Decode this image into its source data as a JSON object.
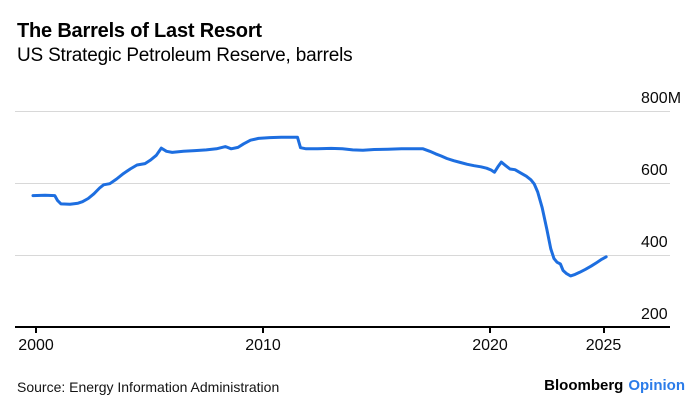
{
  "header": {
    "title": "The Barrels of Last Resort",
    "subtitle": "US Strategic Petroleum Reserve, barrels"
  },
  "footer": {
    "source": "Source: Energy Information Administration",
    "brand_name": "Bloomberg",
    "brand_edition": "Opinion"
  },
  "colors": {
    "line": "#1d6ee0",
    "grid": "#d8d8d8",
    "axis": "#000000",
    "text": "#0a0a0a",
    "brand_blue": "#2b7ce9"
  },
  "chart_data": {
    "type": "line",
    "title": "The Barrels of Last Resort",
    "subtitle": "US Strategic Petroleum Reserve, barrels",
    "ylabel": "",
    "xlabel": "",
    "unit": "million barrels",
    "xlim": [
      1999.8,
      2027.8
    ],
    "ylim": [
      200,
      830
    ],
    "grid": "horizontal",
    "legend": "none",
    "x_ticks": [
      {
        "value": 2000,
        "label": "2000"
      },
      {
        "value": 2010,
        "label": "2010"
      },
      {
        "value": 2020,
        "label": "2020"
      },
      {
        "value": 2025,
        "label": "2025"
      }
    ],
    "y_ticks": [
      {
        "value": 200,
        "label": "200"
      },
      {
        "value": 400,
        "label": "400"
      },
      {
        "value": 600,
        "label": "600"
      },
      {
        "value": 800,
        "label": "800M"
      }
    ],
    "series": [
      {
        "name": "US Strategic Petroleum Reserve",
        "points": [
          [
            1999.87,
            565
          ],
          [
            2000.4,
            566
          ],
          [
            2000.83,
            565
          ],
          [
            2000.95,
            551
          ],
          [
            2001.1,
            542
          ],
          [
            2001.5,
            541
          ],
          [
            2001.85,
            544
          ],
          [
            2002.05,
            548
          ],
          [
            2002.3,
            557
          ],
          [
            2002.55,
            570
          ],
          [
            2002.8,
            586
          ],
          [
            2002.98,
            595
          ],
          [
            2003.25,
            598
          ],
          [
            2003.55,
            611
          ],
          [
            2003.85,
            626
          ],
          [
            2004.15,
            639
          ],
          [
            2004.45,
            650
          ],
          [
            2004.8,
            654
          ],
          [
            2005.05,
            664
          ],
          [
            2005.3,
            677
          ],
          [
            2005.52,
            697
          ],
          [
            2005.75,
            688
          ],
          [
            2006.0,
            685
          ],
          [
            2006.5,
            688
          ],
          [
            2007.0,
            690
          ],
          [
            2007.5,
            692
          ],
          [
            2007.95,
            695
          ],
          [
            2008.35,
            701
          ],
          [
            2008.6,
            695
          ],
          [
            2008.9,
            699
          ],
          [
            2009.15,
            709
          ],
          [
            2009.45,
            719
          ],
          [
            2009.8,
            724
          ],
          [
            2010.3,
            726
          ],
          [
            2010.8,
            727
          ],
          [
            2011.3,
            727
          ],
          [
            2011.52,
            727
          ],
          [
            2011.65,
            698
          ],
          [
            2011.9,
            695
          ],
          [
            2012.4,
            695
          ],
          [
            2013.0,
            696
          ],
          [
            2013.5,
            695
          ],
          [
            2013.95,
            692
          ],
          [
            2014.4,
            691
          ],
          [
            2014.9,
            693
          ],
          [
            2015.5,
            694
          ],
          [
            2016.1,
            695
          ],
          [
            2016.7,
            695
          ],
          [
            2017.05,
            695
          ],
          [
            2017.35,
            688
          ],
          [
            2017.6,
            681
          ],
          [
            2017.85,
            675
          ],
          [
            2018.1,
            668
          ],
          [
            2018.4,
            662
          ],
          [
            2018.7,
            657
          ],
          [
            2019.0,
            652
          ],
          [
            2019.3,
            648
          ],
          [
            2019.6,
            645
          ],
          [
            2019.85,
            641
          ],
          [
            2020.05,
            636
          ],
          [
            2020.2,
            630
          ],
          [
            2020.35,
            645
          ],
          [
            2020.5,
            658
          ],
          [
            2020.68,
            649
          ],
          [
            2020.88,
            639
          ],
          [
            2021.1,
            637
          ],
          [
            2021.35,
            628
          ],
          [
            2021.6,
            619
          ],
          [
            2021.8,
            609
          ],
          [
            2021.95,
            597
          ],
          [
            2022.1,
            575
          ],
          [
            2022.3,
            531
          ],
          [
            2022.5,
            472
          ],
          [
            2022.68,
            417
          ],
          [
            2022.82,
            390
          ],
          [
            2022.95,
            380
          ],
          [
            2023.1,
            375
          ],
          [
            2023.22,
            357
          ],
          [
            2023.38,
            348
          ],
          [
            2023.55,
            342
          ],
          [
            2023.75,
            346
          ],
          [
            2023.95,
            352
          ],
          [
            2024.2,
            360
          ],
          [
            2024.45,
            369
          ],
          [
            2024.7,
            379
          ],
          [
            2024.92,
            388
          ],
          [
            2025.12,
            395
          ]
        ]
      }
    ]
  }
}
